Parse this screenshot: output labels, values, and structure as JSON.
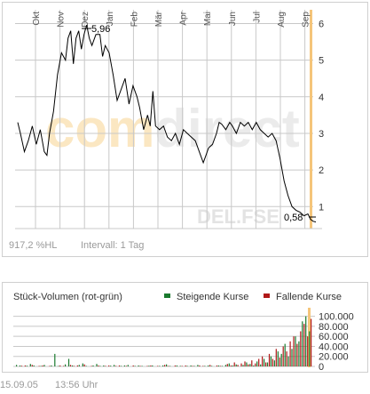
{
  "price_chart": {
    "watermark": "comdirect",
    "source_label": "DEL.FSE",
    "footer_left": "917,2 %HL",
    "footer_right": "Intervall: 1 Tag",
    "high_label": "5,96",
    "last_label": "0,58"
  },
  "volume_chart": {
    "title": "Stück-Volumen (rot-grün)",
    "legend": [
      {
        "label": "Steigende Kurse",
        "color": "#1a7a2e"
      },
      {
        "label": "Fallende Kurse",
        "color": "#b01818"
      }
    ]
  },
  "footer": {
    "date": "15.09.05",
    "time": "13:56 Uhr"
  },
  "colors": {
    "line": "#000000",
    "grid": "#c8c8c8",
    "highlight": "#f5c57a",
    "rising": "#1a7a2e",
    "falling": "#b01818",
    "watermark_orange": "#fbe7c2",
    "watermark_gray": "#ebebeb"
  },
  "chart_data": [
    {
      "type": "line",
      "title": "",
      "xlabel": "",
      "ylabel": "",
      "x_ticks": [
        "Okt",
        "Nov",
        "Dez",
        "Jan",
        "Feb",
        "Mär",
        "Apr",
        "Mai",
        "Jun",
        "Jul",
        "Aug",
        "Sep"
      ],
      "y_ticks": [
        1,
        2,
        3,
        4,
        5,
        6
      ],
      "ylim": [
        0.4,
        6.4
      ],
      "grid": true,
      "series": [
        {
          "name": "",
          "x": [
            0.0,
            0.1,
            0.25,
            0.4,
            0.55,
            0.7,
            0.85,
            1.0,
            1.1,
            1.2,
            1.35,
            1.5,
            1.65,
            1.8,
            1.9,
            2.0,
            2.1,
            2.2,
            2.3,
            2.4,
            2.5,
            2.6,
            2.7,
            2.8,
            2.95,
            3.1,
            3.2,
            3.3,
            3.45,
            3.6,
            3.75,
            3.9,
            4.05,
            4.2,
            4.35,
            4.5,
            4.6,
            4.75,
            4.9,
            5.0,
            5.1,
            5.2,
            5.35,
            5.5,
            5.65,
            5.8,
            5.95,
            6.1,
            6.25,
            6.4,
            6.55,
            6.7,
            6.85,
            7.0,
            7.1,
            7.2,
            7.35,
            7.5,
            7.6,
            7.7,
            7.85,
            8.0,
            8.1,
            8.25,
            8.4,
            8.55,
            8.7,
            8.85,
            9.0,
            9.15,
            9.3,
            9.45,
            9.6,
            9.75,
            9.9,
            10.05,
            10.2,
            10.35,
            10.5,
            10.65,
            10.8,
            10.95,
            11.05,
            11.15,
            11.25
          ],
          "y": [
            3.3,
            3.0,
            2.5,
            2.8,
            3.2,
            2.7,
            3.1,
            2.5,
            2.4,
            3.0,
            3.6,
            4.6,
            5.2,
            5.0,
            5.6,
            5.8,
            4.9,
            5.6,
            5.8,
            5.3,
            5.7,
            5.96,
            5.6,
            5.4,
            5.7,
            5.7,
            5.1,
            5.4,
            5.2,
            4.6,
            3.9,
            4.2,
            4.5,
            3.8,
            4.3,
            4.0,
            3.7,
            3.1,
            3.5,
            3.2,
            4.15,
            3.2,
            3.1,
            3.2,
            2.9,
            2.8,
            3.0,
            2.7,
            3.1,
            3.0,
            2.9,
            2.8,
            2.5,
            2.2,
            2.4,
            2.6,
            2.7,
            3.0,
            3.3,
            3.25,
            3.1,
            3.3,
            3.2,
            3.0,
            3.3,
            3.2,
            3.3,
            3.1,
            3.3,
            3.1,
            3.0,
            2.9,
            3.0,
            2.8,
            2.3,
            1.7,
            1.3,
            1.0,
            0.9,
            0.85,
            0.75,
            0.8,
            0.65,
            0.6,
            0.58
          ]
        }
      ]
    },
    {
      "type": "bar",
      "title": "Stück-Volumen (rot-grün)",
      "xlabel": "",
      "ylabel": "",
      "y_ticks": [
        "0",
        "20.000",
        "40.000",
        "60.000",
        "80.000",
        "100.000"
      ],
      "ylim": [
        0,
        110000
      ],
      "series": [
        {
          "name": "Steigende Kurse",
          "values": [
            3000,
            2000,
            0,
            1500,
            5000,
            2000,
            0,
            1000,
            3000,
            0,
            2000,
            25000,
            1000,
            0,
            4000,
            15000,
            2000,
            0,
            3000,
            6000,
            1000,
            0,
            2000,
            5000,
            1000,
            2000,
            0,
            1500,
            3000,
            0,
            1000,
            2000,
            3000,
            0,
            1000,
            2000,
            1000,
            0,
            1500,
            2000,
            0,
            1000,
            2000,
            4000,
            1000,
            0,
            2000,
            1000,
            0,
            1000,
            2000,
            1000,
            3000,
            0,
            1000,
            2000,
            1000,
            0,
            2000,
            1000,
            3000,
            6000,
            2000,
            4000,
            0,
            3000,
            8000,
            5000,
            2000,
            10000,
            4000,
            15000,
            8000,
            20000,
            12000,
            30000,
            25000,
            45000,
            20000,
            35000,
            60000,
            50000,
            90000,
            100000,
            70000
          ]
        },
        {
          "name": "Fallende Kurse",
          "values": [
            0,
            1500,
            2000,
            0,
            3000,
            0,
            1000,
            2000,
            0,
            1000,
            0,
            0,
            2000,
            1000,
            0,
            3000,
            1000,
            2000,
            0,
            4000,
            0,
            1000,
            0,
            2000,
            0,
            1000,
            2000,
            0,
            1000,
            2000,
            0,
            1000,
            0,
            2000,
            0,
            1000,
            0,
            1000,
            2000,
            0,
            1000,
            0,
            3000,
            1000,
            0,
            2000,
            0,
            1000,
            2000,
            0,
            1000,
            0,
            2000,
            1000,
            0,
            3000,
            0,
            2000,
            1000,
            0,
            5000,
            2000,
            8000,
            3000,
            6000,
            10000,
            4000,
            12000,
            6000,
            15000,
            20000,
            8000,
            25000,
            15000,
            35000,
            18000,
            40000,
            30000,
            50000,
            60000,
            45000,
            70000,
            85000,
            60000,
            95000
          ]
        }
      ]
    }
  ]
}
